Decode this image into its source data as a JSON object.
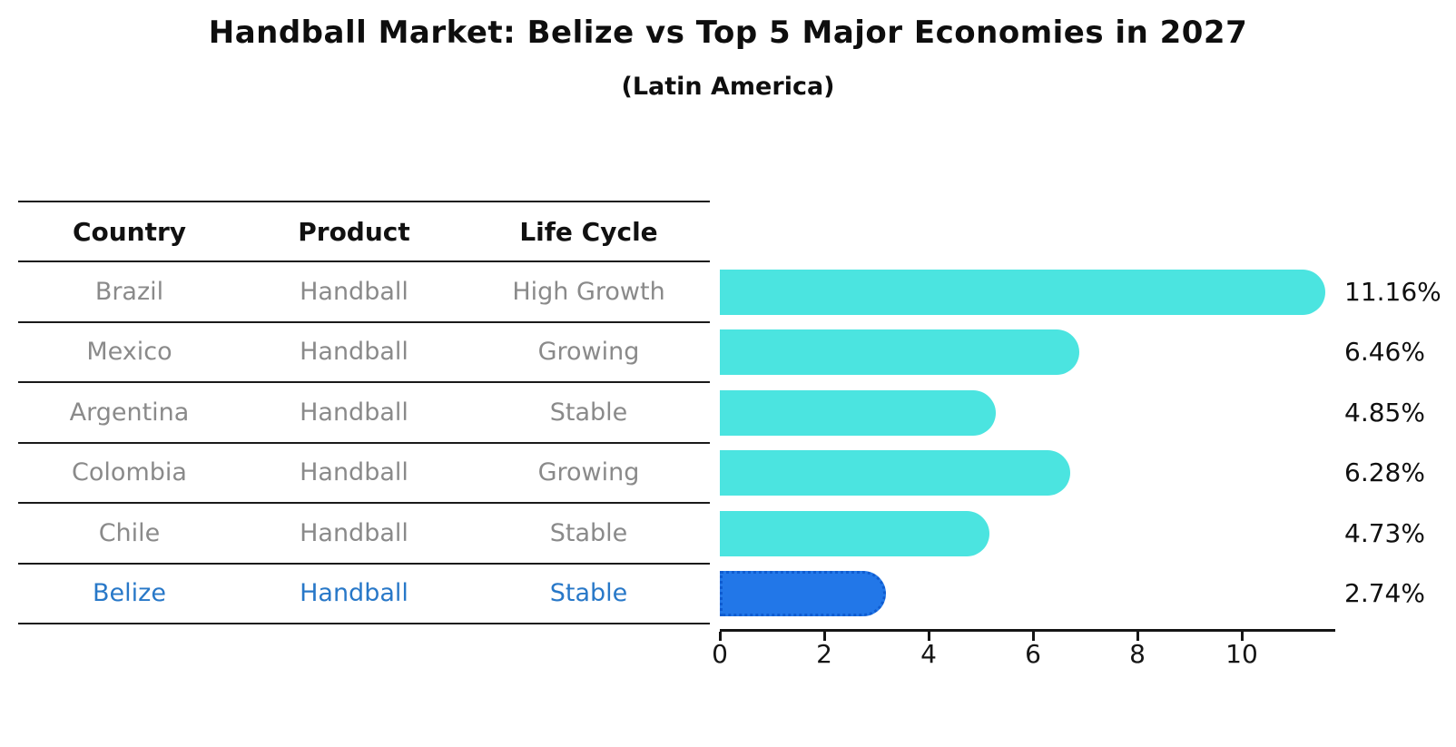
{
  "title": "Handball Market: Belize vs Top 5 Major Economies in 2027",
  "subtitle": "(Latin America)",
  "table": {
    "headers": [
      "Country",
      "Product",
      "Life Cycle"
    ],
    "rows": [
      {
        "country": "Brazil",
        "product": "Handball",
        "life_cycle": "High Growth"
      },
      {
        "country": "Mexico",
        "product": "Handball",
        "life_cycle": "Growing"
      },
      {
        "country": "Argentina",
        "product": "Handball",
        "life_cycle": "Stable"
      },
      {
        "country": "Colombia",
        "product": "Handball",
        "life_cycle": "Growing"
      },
      {
        "country": "Chile",
        "product": "Handball",
        "life_cycle": "Stable"
      },
      {
        "country": "Belize",
        "product": "Handball",
        "life_cycle": "Stable"
      }
    ]
  },
  "chart_data": {
    "type": "bar",
    "orientation": "horizontal",
    "title": "Handball Market: Belize vs Top 5 Major Economies in 2027",
    "subtitle": "(Latin America)",
    "categories": [
      "Brazil",
      "Mexico",
      "Argentina",
      "Colombia",
      "Chile",
      "Belize"
    ],
    "values": [
      11.16,
      6.46,
      4.85,
      6.28,
      4.73,
      2.74
    ],
    "value_labels": [
      "11.16%",
      "6.46%",
      "4.85%",
      "6.28%",
      "4.73%",
      "2.74%"
    ],
    "xlabel": "",
    "ylabel": "",
    "xlim": [
      0,
      11.75
    ],
    "x_ticks": [
      0,
      2,
      4,
      6,
      8,
      10
    ],
    "grid": false,
    "legend": false,
    "bar_style": "rounded-right-cap",
    "highlight_index": 5,
    "highlight_border": "dotted"
  },
  "colors": {
    "bar_cyan": "#4be4e0",
    "highlight_bar_blue": "#2277e8",
    "highlight_border_blue": "#0f5cd0",
    "highlight_text_blue": "#2878c8",
    "table_text_gray": "#8a8a8a",
    "text_black": "#0e0e0e"
  }
}
